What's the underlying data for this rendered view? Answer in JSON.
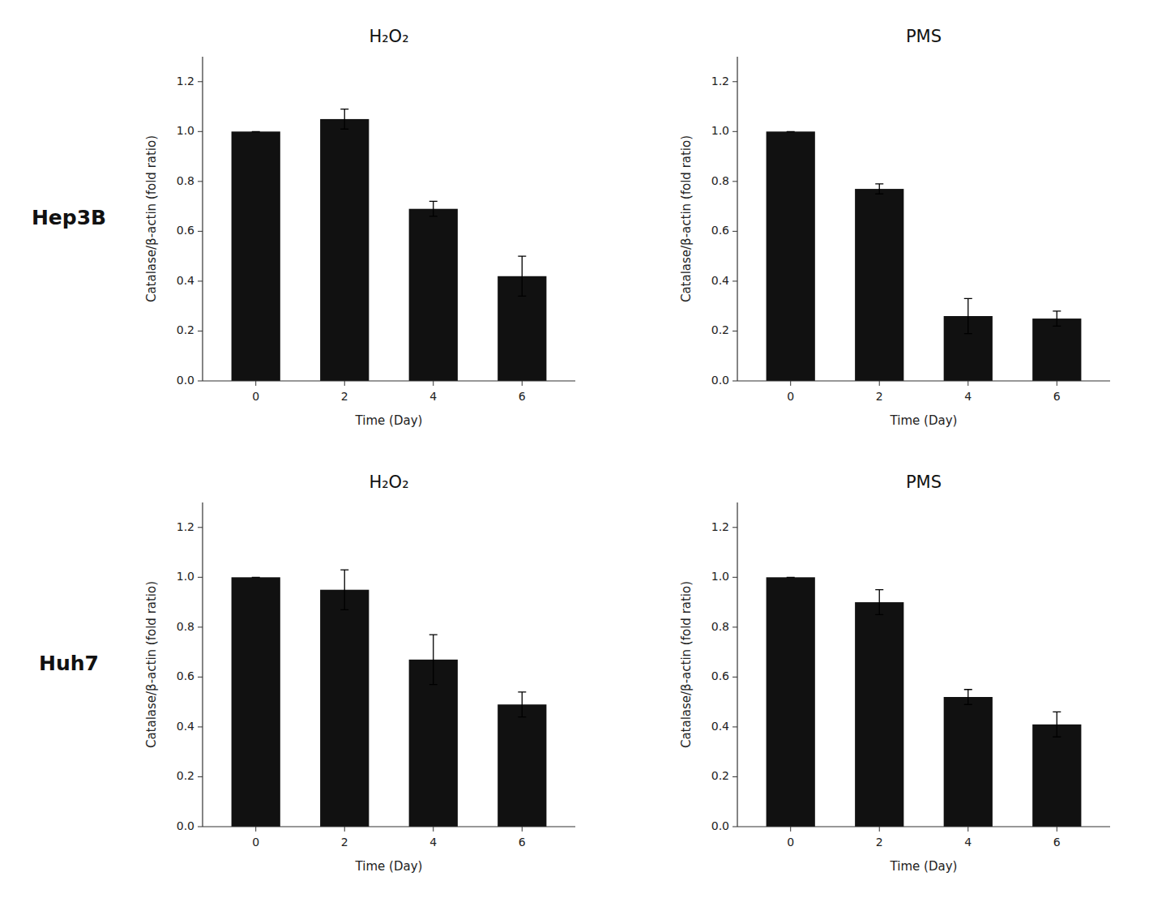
{
  "chart_data": [
    {
      "type": "bar",
      "title": "H₂O₂",
      "annotation": "Hep3B",
      "categories": [
        "0",
        "2",
        "4",
        "6"
      ],
      "values": [
        1.0,
        1.05,
        0.69,
        0.42
      ],
      "errors": [
        0.0,
        0.04,
        0.03,
        0.08
      ],
      "color": "#111111",
      "xlabel": "Time (Day)",
      "ylabel": "Catalase/β-actin (fold ratio)",
      "ylim": [
        0,
        1.3
      ],
      "yticks": [
        {
          "value": 0,
          "label": "0.0"
        },
        0.2,
        0.4,
        0.6,
        0.8,
        {
          "value": 1,
          "label": "1.0"
        },
        1.2
      ],
      "grid": false
    },
    {
      "type": "bar",
      "title": "PMS",
      "categories": [
        "0",
        "2",
        "4",
        "6"
      ],
      "values": [
        1.0,
        0.77,
        0.26,
        0.25
      ],
      "errors": [
        0.0,
        0.02,
        0.07,
        0.03
      ],
      "color": "#111111",
      "xlabel": "Time (Day)",
      "ylabel": "Catalase/β-actin (fold ratio)",
      "ylim": [
        0,
        1.3
      ],
      "yticks": [
        {
          "value": 0,
          "label": "0.0"
        },
        0.2,
        0.4,
        0.6,
        0.8,
        {
          "value": 1,
          "label": "1.0"
        },
        1.2
      ],
      "grid": false
    },
    {
      "type": "bar",
      "title": "H₂O₂",
      "annotation": "Huh7",
      "categories": [
        "0",
        "2",
        "4",
        "6"
      ],
      "values": [
        1.0,
        0.95,
        0.67,
        0.49
      ],
      "errors": [
        0.0,
        0.08,
        0.1,
        0.05
      ],
      "color": "#111111",
      "xlabel": "Time (Day)",
      "ylabel": "Catalase/β-actin (fold ratio)",
      "ylim": [
        0,
        1.3
      ],
      "yticks": [
        {
          "value": 0,
          "label": "0.0"
        },
        0.2,
        0.4,
        0.6,
        0.8,
        {
          "value": 1,
          "label": "1.0"
        },
        1.2
      ],
      "grid": false
    },
    {
      "type": "bar",
      "title": "PMS",
      "categories": [
        "0",
        "2",
        "4",
        "6"
      ],
      "values": [
        1.0,
        0.9,
        0.52,
        0.41
      ],
      "errors": [
        0.0,
        0.05,
        0.03,
        0.05
      ],
      "color": "#111111",
      "xlabel": "Time (Day)",
      "ylabel": "Catalase/β-actin (fold ratio)",
      "ylim": [
        0,
        1.3
      ],
      "yticks": [
        {
          "value": 0,
          "label": "0.0"
        },
        0.2,
        0.4,
        0.6,
        0.8,
        {
          "value": 1,
          "label": "1.0"
        },
        1.2
      ],
      "grid": false
    }
  ]
}
